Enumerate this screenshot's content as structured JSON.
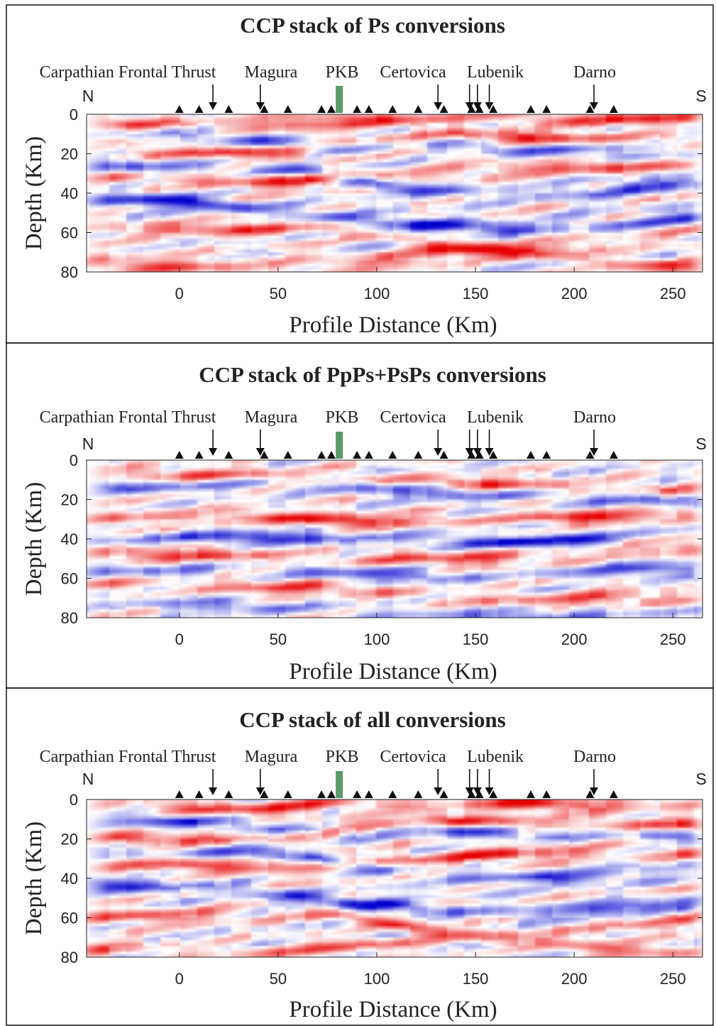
{
  "chart_data": [
    {
      "type": "heatmap",
      "title": "CCP stack of Ps conversions",
      "xlabel": "Profile Distance (Km)",
      "ylabel": "Depth (Km)",
      "xlim": [
        -47,
        265
      ],
      "ylim": [
        0,
        80
      ],
      "xticks": [
        "0",
        "50",
        "100",
        "150",
        "200",
        "250"
      ],
      "yticks": [
        "0",
        "20",
        "40",
        "60",
        "80"
      ],
      "direction_labels": {
        "left": "N",
        "right": "S"
      },
      "colormap": {
        "positive": "#e00000",
        "negative": "#0000d0",
        "zero": "#ffffff"
      },
      "stations_km": [
        0,
        10,
        25,
        43,
        55,
        72,
        77,
        90,
        96,
        108,
        121,
        134,
        148,
        152,
        159,
        178,
        186,
        208,
        220
      ],
      "pkb_marker": {
        "x_km": 81,
        "color": "#5a9a6c"
      },
      "annotations": [
        {
          "label": "Carpathian Frontal Thrust",
          "arrow_x_km": [
            17
          ]
        },
        {
          "label": "Magura",
          "arrow_x_km": [
            41
          ]
        },
        {
          "label": "PKB",
          "arrow_x_km": []
        },
        {
          "label": "Certovica",
          "arrow_x_km": [
            131
          ]
        },
        {
          "label": "Lubenik",
          "arrow_x_km": [
            147,
            151,
            157
          ]
        },
        {
          "label": "Darno",
          "arrow_x_km": [
            210
          ]
        }
      ],
      "reflectors": [
        {
          "polarity": 1,
          "amp": 0.9,
          "depths": [
            [
              -47,
              18
            ],
            [
              0,
              20
            ],
            [
              60,
              19
            ],
            [
              90,
              14
            ],
            [
              130,
              10
            ],
            [
              180,
              12
            ],
            [
              230,
              12
            ],
            [
              265,
              14
            ]
          ]
        },
        {
          "polarity": -1,
          "amp": 1.0,
          "depths": [
            [
              -47,
              43
            ],
            [
              0,
              44
            ],
            [
              40,
              48
            ],
            [
              80,
              52
            ],
            [
              120,
              56
            ],
            [
              170,
              58
            ],
            [
              230,
              55
            ],
            [
              265,
              52
            ]
          ]
        },
        {
          "polarity": -1,
          "amp": 0.8,
          "depths": [
            [
              -47,
              26
            ],
            [
              20,
              27
            ],
            [
              60,
              28
            ],
            [
              100,
              36
            ],
            [
              150,
              40
            ],
            [
              200,
              40
            ],
            [
              240,
              36
            ],
            [
              265,
              34
            ]
          ]
        },
        {
          "polarity": 1,
          "amp": 0.85,
          "depths": [
            [
              -47,
              32
            ],
            [
              20,
              34
            ],
            [
              60,
              34
            ],
            [
              120,
              30
            ],
            [
              160,
              28
            ],
            [
              200,
              27
            ],
            [
              240,
              26
            ],
            [
              265,
              28
            ]
          ]
        },
        {
          "polarity": 1,
          "amp": 0.8,
          "depths": [
            [
              -47,
              59
            ],
            [
              20,
              58
            ],
            [
              80,
              58
            ],
            [
              120,
              66
            ],
            [
              170,
              70
            ],
            [
              220,
              66
            ],
            [
              265,
              58
            ]
          ]
        },
        {
          "polarity": 1,
          "amp": 0.7,
          "depths": [
            [
              -47,
              76
            ],
            [
              40,
              78
            ],
            [
              100,
              74
            ],
            [
              160,
              68
            ],
            [
              220,
              76
            ],
            [
              265,
              78
            ]
          ]
        },
        {
          "polarity": 1,
          "amp": 0.95,
          "depths": [
            [
              -5,
              4
            ],
            [
              40,
              6
            ],
            [
              80,
              2
            ],
            [
              110,
              3
            ],
            [
              150,
              1
            ],
            [
              200,
              3
            ],
            [
              230,
              2
            ]
          ]
        },
        {
          "polarity": -1,
          "amp": 0.7,
          "depths": [
            [
              -20,
              10
            ],
            [
              40,
              13
            ],
            [
              90,
              18
            ],
            [
              120,
              14
            ],
            [
              170,
              18
            ],
            [
              230,
              18
            ],
            [
              265,
              20
            ]
          ]
        }
      ]
    },
    {
      "type": "heatmap",
      "title": "CCP stack of PpPs+PsPs conversions",
      "xlabel": "Profile Distance (Km)",
      "ylabel": "Depth (Km)",
      "xlim": [
        -47,
        265
      ],
      "ylim": [
        0,
        80
      ],
      "xticks": [
        "0",
        "50",
        "100",
        "150",
        "200",
        "250"
      ],
      "yticks": [
        "0",
        "20",
        "40",
        "60",
        "80"
      ],
      "direction_labels": {
        "left": "N",
        "right": "S"
      },
      "colormap": {
        "positive": "#e00000",
        "negative": "#0000d0",
        "zero": "#ffffff"
      },
      "stations_km": [
        0,
        10,
        25,
        43,
        55,
        72,
        77,
        90,
        96,
        108,
        121,
        134,
        148,
        152,
        159,
        178,
        186,
        208,
        220
      ],
      "pkb_marker": {
        "x_km": 81,
        "color": "#5a9a6c"
      },
      "annotations": [
        {
          "label": "Carpathian Frontal Thrust",
          "arrow_x_km": [
            17
          ]
        },
        {
          "label": "Magura",
          "arrow_x_km": [
            41
          ]
        },
        {
          "label": "PKB",
          "arrow_x_km": []
        },
        {
          "label": "Certovica",
          "arrow_x_km": [
            131
          ]
        },
        {
          "label": "Lubenik",
          "arrow_x_km": [
            147,
            151,
            157
          ]
        },
        {
          "label": "Darno",
          "arrow_x_km": [
            210
          ]
        }
      ],
      "reflectors": [
        {
          "polarity": 1,
          "amp": 0.75,
          "depths": [
            [
              -47,
              8
            ],
            [
              40,
              7
            ],
            [
              100,
              9
            ],
            [
              160,
              12
            ],
            [
              220,
              14
            ],
            [
              265,
              16
            ]
          ]
        },
        {
          "polarity": -1,
          "amp": 0.7,
          "depths": [
            [
              -47,
              14
            ],
            [
              40,
              12
            ],
            [
              100,
              15
            ],
            [
              160,
              18
            ],
            [
              220,
              20
            ],
            [
              265,
              22
            ]
          ]
        },
        {
          "polarity": 1,
          "amp": 1.0,
          "depths": [
            [
              -47,
              30
            ],
            [
              40,
              29
            ],
            [
              100,
              31
            ],
            [
              160,
              30
            ],
            [
              220,
              29
            ],
            [
              265,
              26
            ]
          ]
        },
        {
          "polarity": -1,
          "amp": 1.0,
          "depths": [
            [
              -47,
              40
            ],
            [
              40,
              39
            ],
            [
              100,
              40
            ],
            [
              160,
              42
            ],
            [
              220,
              40
            ],
            [
              265,
              33
            ]
          ]
        },
        {
          "polarity": 1,
          "amp": 0.8,
          "depths": [
            [
              -47,
              48
            ],
            [
              40,
              48
            ],
            [
              100,
              50
            ],
            [
              160,
              50
            ],
            [
              220,
              46
            ],
            [
              265,
              44
            ]
          ]
        },
        {
          "polarity": -1,
          "amp": 0.65,
          "depths": [
            [
              -47,
              56
            ],
            [
              40,
              56
            ],
            [
              100,
              58
            ],
            [
              160,
              60
            ],
            [
              220,
              56
            ],
            [
              265,
              54
            ]
          ]
        },
        {
          "polarity": 1,
          "amp": 0.7,
          "depths": [
            [
              -47,
              63
            ],
            [
              40,
              64
            ],
            [
              100,
              66
            ],
            [
              160,
              72
            ],
            [
              220,
              70
            ],
            [
              265,
              68
            ]
          ]
        },
        {
          "polarity": -1,
          "amp": 0.6,
          "depths": [
            [
              -47,
              72
            ],
            [
              40,
              74
            ],
            [
              100,
              78
            ],
            [
              160,
              80
            ],
            [
              220,
              78
            ],
            [
              265,
              76
            ]
          ]
        }
      ]
    },
    {
      "type": "heatmap",
      "title": "CCP stack of all conversions",
      "xlabel": "Profile Distance (Km)",
      "ylabel": "Depth (Km)",
      "xlim": [
        -47,
        265
      ],
      "ylim": [
        0,
        80
      ],
      "xticks": [
        "0",
        "50",
        "100",
        "150",
        "200",
        "250"
      ],
      "yticks": [
        "0",
        "20",
        "40",
        "60",
        "80"
      ],
      "direction_labels": {
        "left": "N",
        "right": "S"
      },
      "colormap": {
        "positive": "#e00000",
        "negative": "#0000d0",
        "zero": "#ffffff"
      },
      "stations_km": [
        0,
        10,
        25,
        43,
        55,
        72,
        77,
        90,
        96,
        108,
        121,
        134,
        148,
        152,
        159,
        178,
        186,
        208,
        220
      ],
      "pkb_marker": {
        "x_km": 81,
        "color": "#5a9a6c"
      },
      "annotations": [
        {
          "label": "Carpathian Frontal Thrust",
          "arrow_x_km": [
            17
          ]
        },
        {
          "label": "Magura",
          "arrow_x_km": [
            41
          ]
        },
        {
          "label": "PKB",
          "arrow_x_km": []
        },
        {
          "label": "Certovica",
          "arrow_x_km": [
            131
          ]
        },
        {
          "label": "Lubenik",
          "arrow_x_km": [
            147,
            151,
            157
          ]
        },
        {
          "label": "Darno",
          "arrow_x_km": [
            210
          ]
        }
      ],
      "reflectors": [
        {
          "polarity": 1,
          "amp": 0.85,
          "depths": [
            [
              -47,
              20
            ],
            [
              0,
              20
            ],
            [
              60,
              19
            ],
            [
              90,
              14
            ],
            [
              130,
              10
            ],
            [
              180,
              12
            ],
            [
              230,
              12
            ],
            [
              265,
              14
            ]
          ]
        },
        {
          "polarity": -1,
          "amp": 1.0,
          "depths": [
            [
              -47,
              43
            ],
            [
              0,
              44
            ],
            [
              40,
              47
            ],
            [
              80,
              52
            ],
            [
              120,
              55
            ],
            [
              170,
              58
            ],
            [
              230,
              55
            ],
            [
              265,
              52
            ]
          ]
        },
        {
          "polarity": -1,
          "amp": 0.75,
          "depths": [
            [
              -47,
              26
            ],
            [
              20,
              27
            ],
            [
              60,
              28
            ],
            [
              100,
              36
            ],
            [
              150,
              40
            ],
            [
              200,
              40
            ],
            [
              240,
              36
            ],
            [
              265,
              34
            ]
          ]
        },
        {
          "polarity": 1,
          "amp": 0.85,
          "depths": [
            [
              -47,
              32
            ],
            [
              20,
              34
            ],
            [
              60,
              33
            ],
            [
              120,
              30
            ],
            [
              160,
              28
            ],
            [
              200,
              27
            ],
            [
              240,
              27
            ],
            [
              265,
              28
            ]
          ]
        },
        {
          "polarity": 1,
          "amp": 0.75,
          "depths": [
            [
              -47,
              60
            ],
            [
              20,
              58
            ],
            [
              80,
              58
            ],
            [
              120,
              66
            ],
            [
              170,
              70
            ],
            [
              220,
              66
            ],
            [
              265,
              58
            ]
          ]
        },
        {
          "polarity": 1,
          "amp": 0.6,
          "depths": [
            [
              -47,
              76
            ],
            [
              40,
              78
            ],
            [
              100,
              74
            ],
            [
              160,
              70
            ],
            [
              220,
              76
            ],
            [
              265,
              78
            ]
          ]
        },
        {
          "polarity": 1,
          "amp": 0.9,
          "depths": [
            [
              -5,
              4
            ],
            [
              40,
              5
            ],
            [
              80,
              2
            ],
            [
              110,
              3
            ],
            [
              150,
              1
            ],
            [
              200,
              3
            ],
            [
              230,
              2
            ]
          ]
        },
        {
          "polarity": -1,
          "amp": 0.7,
          "depths": [
            [
              -20,
              10
            ],
            [
              40,
              13
            ],
            [
              90,
              18
            ],
            [
              120,
              14
            ],
            [
              170,
              18
            ],
            [
              230,
              18
            ],
            [
              265,
              20
            ]
          ]
        }
      ]
    }
  ]
}
